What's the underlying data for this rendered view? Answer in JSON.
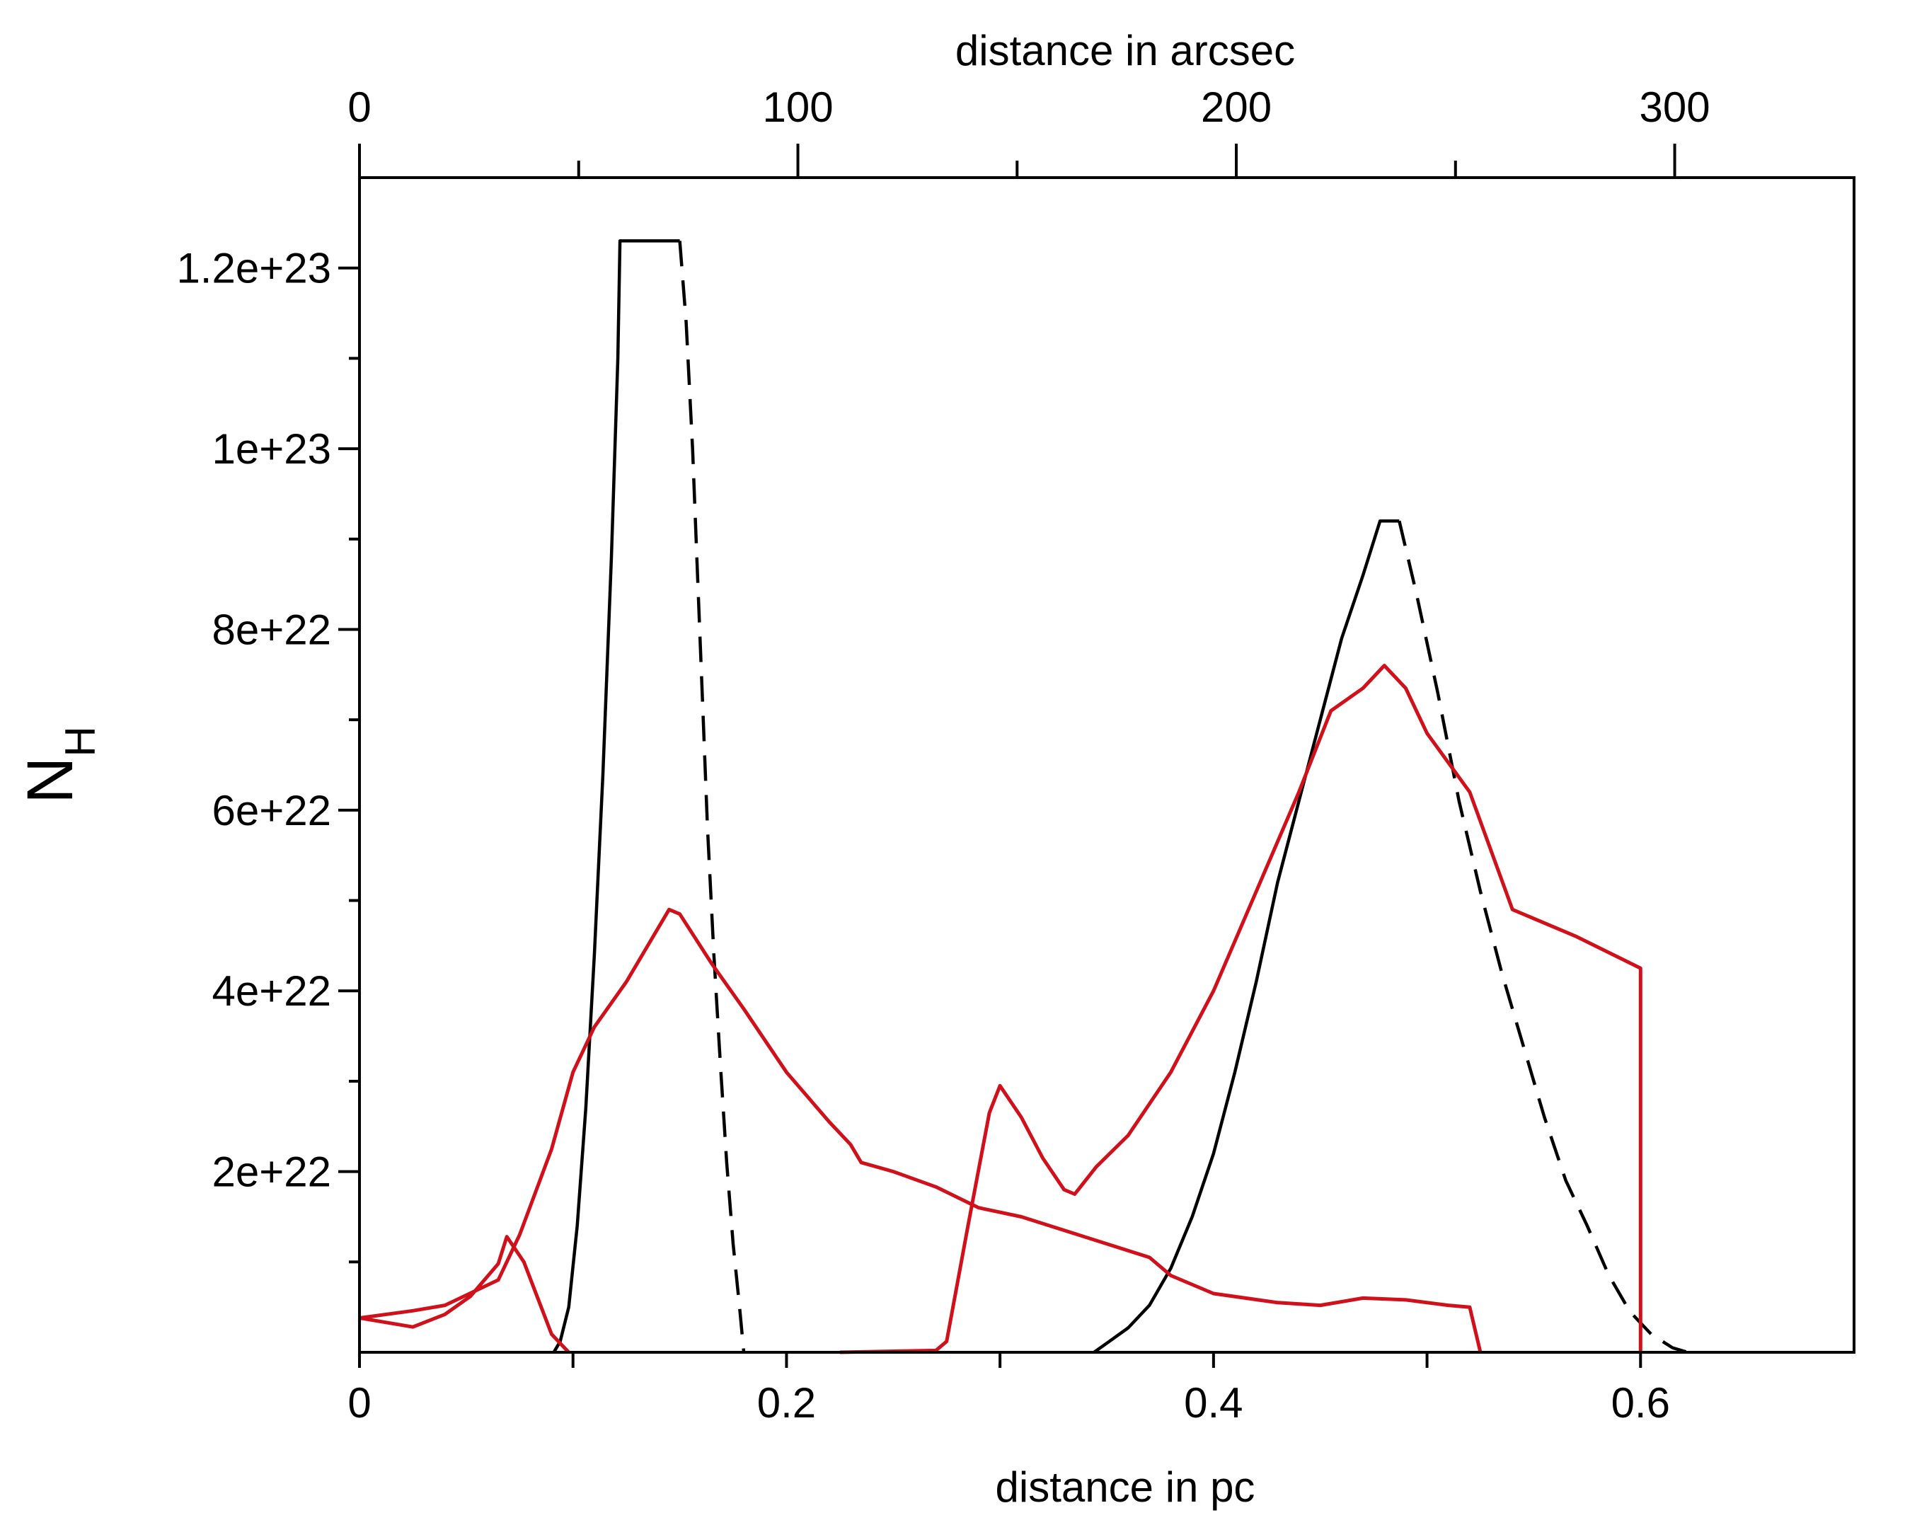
{
  "chart_data": {
    "type": "line",
    "xlabel": "distance in pc",
    "x2label": "distance in arcsec",
    "ylabel_main": "N",
    "ylabel_sub": "H",
    "xlim": [
      0,
      0.7
    ],
    "x2lim": [
      0,
      340.91
    ],
    "ylim": [
      0,
      1.3e+23
    ],
    "x_ticks": [
      {
        "value": 0,
        "label": "0"
      },
      {
        "value": 0.2,
        "label": "0.2"
      },
      {
        "value": 0.4,
        "label": "0.4"
      },
      {
        "value": 0.6,
        "label": "0.6"
      }
    ],
    "x_minor_ticks": [
      0.1,
      0.3,
      0.5
    ],
    "x2_ticks": [
      {
        "value": 0,
        "label": "0"
      },
      {
        "value": 100,
        "label": "100"
      },
      {
        "value": 200,
        "label": "200"
      },
      {
        "value": 300,
        "label": "300"
      }
    ],
    "x2_minor_ticks": [
      50,
      150,
      250
    ],
    "y_ticks": [
      {
        "value": 2e+22,
        "label": "2e+22"
      },
      {
        "value": 4e+22,
        "label": "4e+22"
      },
      {
        "value": 6e+22,
        "label": "6e+22"
      },
      {
        "value": 8e+22,
        "label": "8e+22"
      },
      {
        "value": 1e+23,
        "label": "1e+23"
      },
      {
        "value": 1.2e+23,
        "label": "1.2e+23"
      }
    ],
    "y_minor_ticks": [
      1e+22,
      3e+22,
      5e+22,
      7e+22,
      9e+22,
      1.1e+23
    ],
    "series": [
      {
        "color": "#000000",
        "dash": "solid",
        "points": [
          [
            0.091,
            0
          ],
          [
            0.094,
            1.2e+21
          ],
          [
            0.098,
            5e+21
          ],
          [
            0.102,
            1.4e+22
          ],
          [
            0.106,
            2.7e+22
          ],
          [
            0.11,
            4.4e+22
          ],
          [
            0.114,
            6.4e+22
          ],
          [
            0.118,
            8.8e+22
          ],
          [
            0.121,
            1.1e+23
          ],
          [
            0.122,
            1.23e+23
          ],
          [
            0.15,
            1.23e+23
          ]
        ]
      },
      {
        "color": "#000000",
        "dash": "dashed",
        "points": [
          [
            0.15,
            1.23e+23
          ],
          [
            0.153,
            1.14e+23
          ],
          [
            0.156,
            1e+23
          ],
          [
            0.158,
            8.8e+22
          ],
          [
            0.161,
            7e+22
          ],
          [
            0.163,
            5.8e+22
          ],
          [
            0.166,
            4.4e+22
          ],
          [
            0.169,
            3.2e+22
          ],
          [
            0.172,
            2.1e+22
          ],
          [
            0.175,
            1.2e+22
          ],
          [
            0.178,
            5e+21
          ],
          [
            0.18,
            0
          ]
        ]
      },
      {
        "color": "#000000",
        "dash": "solid",
        "points": [
          [
            0.344,
            0
          ],
          [
            0.35,
            1e+21
          ],
          [
            0.36,
            2.7e+21
          ],
          [
            0.37,
            5.2e+21
          ],
          [
            0.38,
            9.3e+21
          ],
          [
            0.39,
            1.5e+22
          ],
          [
            0.4,
            2.2e+22
          ],
          [
            0.41,
            3.1e+22
          ],
          [
            0.42,
            4.1e+22
          ],
          [
            0.43,
            5.2e+22
          ],
          [
            0.44,
            6.1e+22
          ],
          [
            0.45,
            7e+22
          ],
          [
            0.46,
            7.9e+22
          ],
          [
            0.47,
            8.6e+22
          ],
          [
            0.478,
            9.2e+22
          ],
          [
            0.487,
            9.2e+22
          ]
        ]
      },
      {
        "color": "#000000",
        "dash": "dashed",
        "points": [
          [
            0.487,
            9.2e+22
          ],
          [
            0.495,
            8.4e+22
          ],
          [
            0.505,
            7.3e+22
          ],
          [
            0.515,
            6.1e+22
          ],
          [
            0.525,
            5.1e+22
          ],
          [
            0.535,
            4.2e+22
          ],
          [
            0.545,
            3.4e+22
          ],
          [
            0.555,
            2.6e+22
          ],
          [
            0.565,
            1.9e+22
          ],
          [
            0.575,
            1.4e+22
          ],
          [
            0.585,
            8.6e+21
          ],
          [
            0.595,
            4.5e+21
          ],
          [
            0.605,
            2e+21
          ],
          [
            0.615,
            5e+20
          ],
          [
            0.622,
            0
          ]
        ]
      },
      {
        "color": "#d0101a",
        "dash": "solid",
        "points": [
          [
            0,
            3.8e+21
          ],
          [
            0.025,
            2.8e+21
          ],
          [
            0.04,
            4.2e+21
          ],
          [
            0.052,
            6.2e+21
          ],
          [
            0.065,
            9.8e+21
          ],
          [
            0.069,
            1.28e+22
          ],
          [
            0.077,
            1e+22
          ],
          [
            0.09,
            2e+21
          ],
          [
            0.098,
            0
          ]
        ]
      },
      {
        "color": "#d0101a",
        "dash": "solid",
        "points": [
          [
            0,
            3.8e+21
          ],
          [
            0.025,
            4.6e+21
          ],
          [
            0.04,
            5.2e+21
          ],
          [
            0.065,
            8e+21
          ],
          [
            0.075,
            1.3e+22
          ],
          [
            0.09,
            2.25e+22
          ],
          [
            0.1,
            3.1e+22
          ],
          [
            0.11,
            3.6e+22
          ],
          [
            0.125,
            4.1e+22
          ],
          [
            0.145,
            4.9e+22
          ],
          [
            0.15,
            4.85e+22
          ],
          [
            0.165,
            4.3e+22
          ],
          [
            0.18,
            3.8e+22
          ],
          [
            0.2,
            3.1e+22
          ],
          [
            0.22,
            2.55e+22
          ],
          [
            0.23,
            2.3e+22
          ],
          [
            0.235,
            2.1e+22
          ],
          [
            0.25,
            2e+22
          ],
          [
            0.27,
            1.83e+22
          ],
          [
            0.29,
            1.6e+22
          ],
          [
            0.31,
            1.5e+22
          ],
          [
            0.33,
            1.35e+22
          ],
          [
            0.35,
            1.2e+22
          ],
          [
            0.37,
            1.05e+22
          ],
          [
            0.38,
            8.5e+21
          ],
          [
            0.4,
            6.5e+21
          ],
          [
            0.43,
            5.5e+21
          ],
          [
            0.45,
            5.2e+21
          ],
          [
            0.47,
            6e+21
          ],
          [
            0.49,
            5.8e+21
          ],
          [
            0.51,
            5.2e+21
          ],
          [
            0.52,
            5e+21
          ],
          [
            0.525,
            0
          ]
        ]
      },
      {
        "color": "#d0101a",
        "dash": "solid",
        "points": [
          [
            0.225,
            0
          ],
          [
            0.27,
            2e+20
          ],
          [
            0.275,
            1.2e+21
          ],
          [
            0.285,
            1.4e+22
          ],
          [
            0.295,
            2.65e+22
          ],
          [
            0.3,
            2.95e+22
          ],
          [
            0.31,
            2.6e+22
          ],
          [
            0.32,
            2.15e+22
          ],
          [
            0.33,
            1.8e+22
          ],
          [
            0.335,
            1.75e+22
          ],
          [
            0.345,
            2.05e+22
          ],
          [
            0.36,
            2.4e+22
          ],
          [
            0.38,
            3.1e+22
          ],
          [
            0.4,
            4e+22
          ],
          [
            0.42,
            5.1e+22
          ],
          [
            0.44,
            6.2e+22
          ],
          [
            0.455,
            7.1e+22
          ],
          [
            0.47,
            7.35e+22
          ],
          [
            0.48,
            7.6e+22
          ],
          [
            0.49,
            7.35e+22
          ],
          [
            0.5,
            6.85e+22
          ],
          [
            0.52,
            6.2e+22
          ],
          [
            0.54,
            4.9e+22
          ],
          [
            0.57,
            4.6e+22
          ],
          [
            0.6,
            4.25e+22
          ],
          [
            0.6,
            0
          ]
        ]
      }
    ]
  }
}
